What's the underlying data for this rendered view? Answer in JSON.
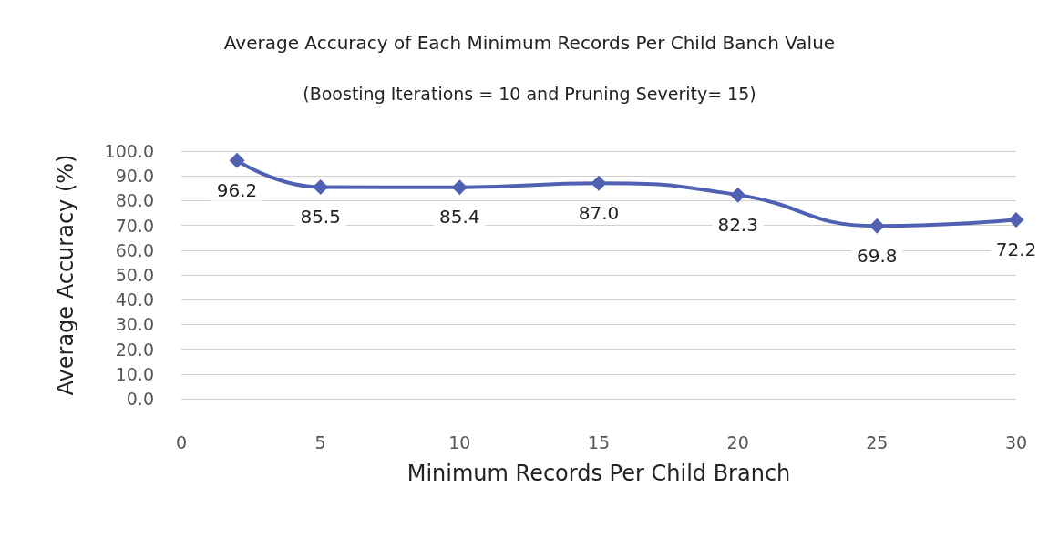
{
  "chart_data": {
    "type": "line",
    "title": "Average Accuracy of Each Minimum Records Per Child Banch Value",
    "subtitle": "(Boosting Iterations = 10 and Pruning Severity= 15)",
    "xlabel": "Minimum Records Per Child Branch",
    "ylabel": "Average Accuracy (%)",
    "x": [
      2,
      5,
      10,
      15,
      20,
      25,
      30
    ],
    "series": [
      {
        "color": "#5061b4",
        "values": [
          96.2,
          85.5,
          85.4,
          87.0,
          82.3,
          69.8,
          72.2
        ],
        "value_labels": [
          "96.2",
          "85.5",
          "85.4",
          "87.0",
          "82.3",
          "69.8",
          "72.2"
        ]
      }
    ],
    "xlim": [
      0,
      30
    ],
    "xticks": [
      0,
      5,
      10,
      15,
      20,
      25,
      30
    ],
    "ylim": [
      0,
      100
    ],
    "yticks": [
      {
        "value": 0,
        "label": "0.0"
      },
      {
        "value": 10,
        "label": "10.0"
      },
      {
        "value": 20,
        "label": "20.0"
      },
      {
        "value": 30,
        "label": "30.0"
      },
      {
        "value": 40,
        "label": "40.0"
      },
      {
        "value": 50,
        "label": "50.0"
      },
      {
        "value": 60,
        "label": "60.0"
      },
      {
        "value": 70,
        "label": "70.0"
      },
      {
        "value": 80,
        "label": "80.0"
      },
      {
        "value": 90,
        "label": "90.0"
      },
      {
        "value": 100,
        "label": "100.0"
      }
    ],
    "grid": "y",
    "marker": "diamond",
    "line_style": "solid"
  }
}
